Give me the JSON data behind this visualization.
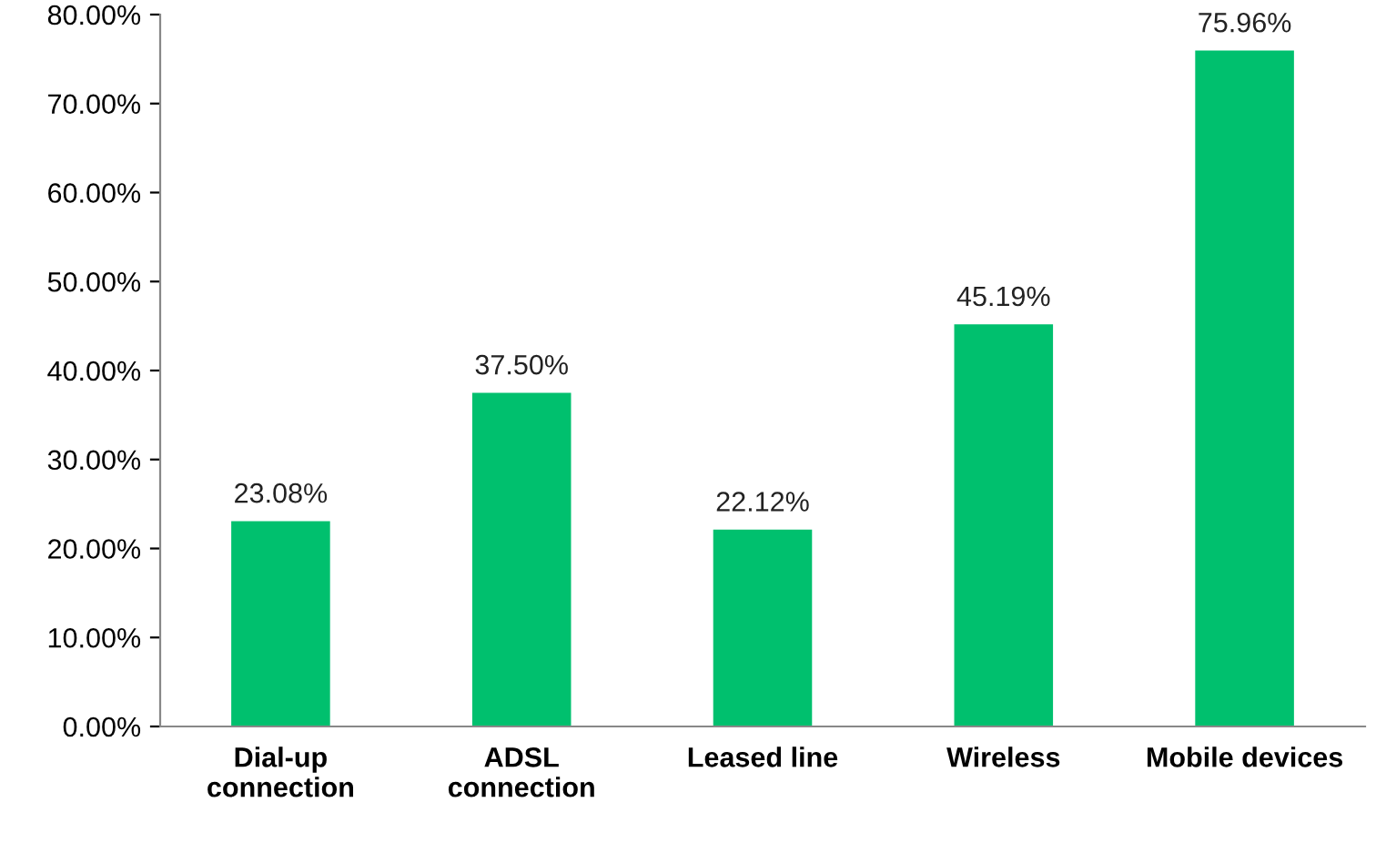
{
  "chart_data": {
    "type": "bar",
    "categories": [
      "Dial-up\nconnection",
      "ADSL\nconnection",
      "Leased line",
      "Wireless",
      "Mobile devices"
    ],
    "values": [
      23.08,
      37.5,
      22.12,
      45.19,
      75.96
    ],
    "value_labels": [
      "23.08%",
      "37.50%",
      "22.12%",
      "45.19%",
      "75.96%"
    ],
    "color": "#00c06e",
    "ylim": [
      0,
      80
    ],
    "yticks": [
      {
        "value": 0,
        "label": "0.00%"
      },
      {
        "value": 10,
        "label": "10.00%"
      },
      {
        "value": 20,
        "label": "20.00%"
      },
      {
        "value": 30,
        "label": "30.00%"
      },
      {
        "value": 40,
        "label": "40.00%"
      },
      {
        "value": 50,
        "label": "50.00%"
      },
      {
        "value": 60,
        "label": "60.00%"
      },
      {
        "value": 70,
        "label": "70.00%"
      },
      {
        "value": 80,
        "label": "80.00%"
      }
    ],
    "grid": false
  }
}
